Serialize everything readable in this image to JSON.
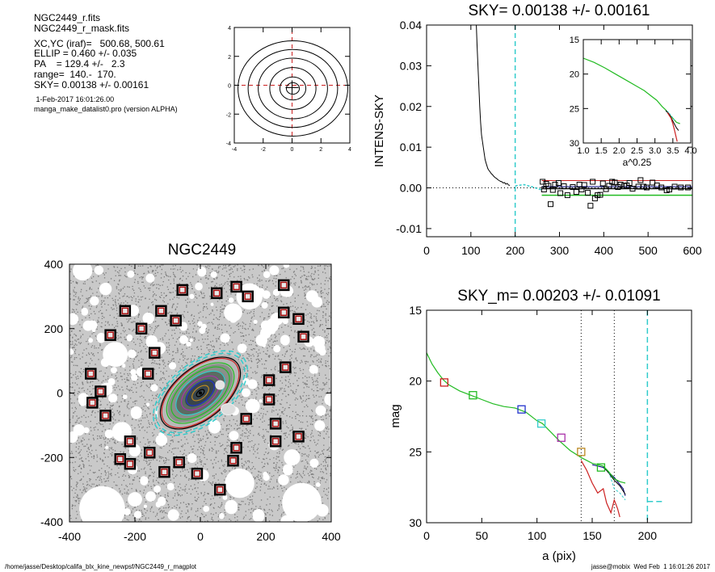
{
  "header": {
    "file_lines": [
      "NGC2449_r.fits",
      "NGC2449_r_mask.fits"
    ],
    "param_lines": [
      "XC,YC (iraf)=   500.68, 500.61",
      "ELLIP = 0.460 +/- 0.035",
      "PA    = 129.4 +/-   2.3",
      "range=  140.-  170.",
      "SKY= 0.00138 +/- 0.00161"
    ],
    "date": " 1-Feb-2017 16:01:26.00",
    "program": "manga_make_datalist0.pro (version ALPHA)"
  },
  "footer": {
    "left": "/home/jasse/Desktop/califa_blx_kine_newpsf/NGC2449_r_magplot",
    "right": "jasse@mobix  Wed Feb  1 16:01:26 2017"
  },
  "colors": {
    "red_line": "#cc2020",
    "green_line": "#22bb22",
    "cyan_line": "#33cccc",
    "navy_line": "#000080",
    "mask_grey": "#9a9a9a",
    "box_red": "#aa1111"
  },
  "chart_data": [
    {
      "id": "contour",
      "type": "contour",
      "title": "",
      "xlim": [
        -4,
        4
      ],
      "ylim": [
        -4,
        4
      ],
      "xticks": [
        -4,
        -2,
        0,
        2,
        4
      ],
      "yticks": [
        -4,
        -2,
        0,
        2,
        4
      ],
      "contours": [
        {
          "a": 0.45,
          "b": 0.4
        },
        {
          "a": 0.9,
          "b": 0.8
        },
        {
          "a": 1.6,
          "b": 1.45
        },
        {
          "a": 2.4,
          "b": 2.1
        },
        {
          "a": 3.1,
          "b": 2.7
        },
        {
          "a": 3.8,
          "b": 3.3
        }
      ]
    },
    {
      "id": "sky",
      "type": "line",
      "title": "SKY= 0.00138 +/- 0.00161",
      "xlabel": "",
      "ylabel": "INTENS-SKY",
      "xlim": [
        0,
        600
      ],
      "ylim": [
        -0.012,
        0.04
      ],
      "xticks": [
        0,
        100,
        200,
        300,
        400,
        500,
        600
      ],
      "yticks": [
        0.04,
        0.03,
        0.02,
        0.01,
        0.0,
        -0.01
      ],
      "ytick_labels": [
        "0.04",
        "0.03",
        "0.02",
        "0.01",
        "0.00",
        "-0.01"
      ],
      "profile": [
        [
          112,
          0.041
        ],
        [
          114,
          0.035
        ],
        [
          116,
          0.03
        ],
        [
          118,
          0.025
        ],
        [
          120,
          0.02
        ],
        [
          122,
          0.016
        ],
        [
          124,
          0.013
        ],
        [
          126,
          0.0115
        ],
        [
          128,
          0.01
        ],
        [
          130,
          0.0085
        ],
        [
          132,
          0.007
        ],
        [
          134,
          0.0062
        ],
        [
          136,
          0.0055
        ],
        [
          138,
          0.0048
        ],
        [
          140,
          0.0044
        ],
        [
          143,
          0.004
        ],
        [
          146,
          0.0035
        ],
        [
          149,
          0.0032
        ],
        [
          152,
          0.0028
        ],
        [
          155,
          0.0025
        ],
        [
          158,
          0.0023
        ],
        [
          161,
          0.002
        ],
        [
          164,
          0.0018
        ],
        [
          167,
          0.0016
        ],
        [
          170,
          0.0015
        ],
        [
          173,
          0.0012
        ],
        [
          176,
          0.0013
        ],
        [
          179,
          0.0009
        ],
        [
          182,
          0.0011
        ],
        [
          185,
          0.0007
        ],
        [
          188,
          0.0006
        ]
      ],
      "points": [
        [
          262,
          0.0015
        ],
        [
          265,
          -0.0004
        ],
        [
          270,
          0.001
        ],
        [
          275,
          0.0005
        ],
        [
          280,
          -0.004
        ],
        [
          285,
          -0.0005
        ],
        [
          290,
          0.0008
        ],
        [
          298,
          0.0012
        ],
        [
          302,
          -0.0013
        ],
        [
          310,
          0.0004
        ],
        [
          318,
          -0.0018
        ],
        [
          330,
          0.0002
        ],
        [
          338,
          -0.001
        ],
        [
          345,
          0.0008
        ],
        [
          350,
          -0.0004
        ],
        [
          356,
          0.0007
        ],
        [
          364,
          -0.0012
        ],
        [
          370,
          -0.0044
        ],
        [
          375,
          0.0015
        ],
        [
          380,
          -0.0026
        ],
        [
          386,
          -0.0018
        ],
        [
          392,
          -0.0017
        ],
        [
          398,
          0.0011
        ],
        [
          405,
          -0.0003
        ],
        [
          412,
          0.0005
        ],
        [
          419,
          0.0015
        ],
        [
          425,
          0.0013
        ],
        [
          432,
          0.0002
        ],
        [
          438,
          0.0008
        ],
        [
          446,
          0.0005
        ],
        [
          452,
          0.0006
        ],
        [
          458,
          0.0012
        ],
        [
          465,
          -0.0002
        ],
        [
          478,
          0.0003
        ],
        [
          483,
          0.0019
        ],
        [
          490,
          0.0003
        ],
        [
          497,
          0.0001
        ],
        [
          510,
          0.0013
        ],
        [
          520,
          0.0006
        ],
        [
          530,
          0.0001
        ],
        [
          542,
          -0.0006
        ],
        [
          548,
          -0.0004
        ],
        [
          560,
          0.0003
        ],
        [
          574,
          0.0001
        ],
        [
          590,
          0.0001
        ]
      ],
      "sky_line": 0.00138,
      "sky_upper": 0.0018,
      "sky_lower": -0.0018,
      "fit_start": 260,
      "dashed_x": 200,
      "inset": {
        "xlabel": "a^0.25",
        "xlim": [
          1.0,
          4.0
        ],
        "ylim": [
          15,
          30
        ],
        "xtick_labels": [
          "1.0",
          "1.5",
          "2.0",
          "2.5",
          "3.0",
          "3.5",
          "4.0"
        ],
        "yticks": [
          15,
          20,
          25,
          30
        ],
        "green": [
          [
            1.0,
            17.7
          ],
          [
            1.3,
            18.3
          ],
          [
            1.6,
            19.1
          ],
          [
            1.9,
            20.0
          ],
          [
            2.2,
            20.9
          ],
          [
            2.5,
            21.8
          ],
          [
            2.7,
            22.4
          ],
          [
            2.9,
            23.2
          ],
          [
            3.05,
            23.8
          ],
          [
            3.2,
            24.7
          ],
          [
            3.3,
            25.2
          ],
          [
            3.4,
            25.9
          ],
          [
            3.5,
            26.4
          ],
          [
            3.6,
            27.0
          ],
          [
            3.7,
            27.2
          ]
        ],
        "black": [
          [
            3.3,
            25.3
          ],
          [
            3.4,
            25.8
          ],
          [
            3.5,
            26.8
          ],
          [
            3.55,
            27.3
          ],
          [
            3.6,
            27.8
          ],
          [
            3.66,
            28.2
          ]
        ],
        "red": [
          [
            3.35,
            25.6
          ],
          [
            3.45,
            26.4
          ],
          [
            3.5,
            27.2
          ],
          [
            3.55,
            28.2
          ],
          [
            3.58,
            28.9
          ],
          [
            3.62,
            29.8
          ]
        ],
        "cyan": [
          [
            3.35,
            25.4
          ],
          [
            3.45,
            26.0
          ],
          [
            3.55,
            26.7
          ]
        ]
      }
    },
    {
      "id": "image",
      "type": "image",
      "title": "NGC2449",
      "xlim": [
        -400,
        400
      ],
      "ylim": [
        -400,
        400
      ],
      "xticks": [
        -400,
        -200,
        0,
        200,
        400
      ],
      "yticks": [
        400,
        200,
        0,
        -200,
        -400
      ],
      "squares": [
        [
          -330,
          -30
        ],
        [
          -305,
          5
        ],
        [
          -335,
          60
        ],
        [
          -290,
          -70
        ],
        [
          -275,
          180
        ],
        [
          -230,
          255
        ],
        [
          -215,
          -150
        ],
        [
          -245,
          -205
        ],
        [
          -215,
          -220
        ],
        [
          -180,
          200
        ],
        [
          -155,
          -185
        ],
        [
          -140,
          125
        ],
        [
          -160,
          60
        ],
        [
          -120,
          255
        ],
        [
          -75,
          225
        ],
        [
          -110,
          -245
        ],
        [
          -65,
          -215
        ],
        [
          -55,
          320
        ],
        [
          -10,
          -250
        ],
        [
          50,
          310
        ],
        [
          60,
          -300
        ],
        [
          100,
          -210
        ],
        [
          110,
          330
        ],
        [
          110,
          -170
        ],
        [
          140,
          -80
        ],
        [
          145,
          300
        ],
        [
          210,
          40
        ],
        [
          210,
          -20
        ],
        [
          230,
          -150
        ],
        [
          230,
          -95
        ],
        [
          255,
          335
        ],
        [
          255,
          250
        ],
        [
          260,
          80
        ],
        [
          300,
          -135
        ],
        [
          300,
          230
        ],
        [
          315,
          175
        ]
      ],
      "ellipses": [
        {
          "a": 170,
          "b": 92,
          "color": "cyan",
          "dashed": true
        },
        {
          "a": 160,
          "b": 86,
          "color": "cyan",
          "dashed": true
        },
        {
          "a": 145,
          "b": 78,
          "color": "black",
          "dashed": false
        },
        {
          "a": 140,
          "b": 75,
          "color": "red",
          "dashed": false
        },
        {
          "a": 122,
          "b": 66,
          "color": "green",
          "dashed": false
        },
        {
          "a": 105,
          "b": 57,
          "color": "green",
          "dashed": false
        },
        {
          "a": 88,
          "b": 48,
          "color": "cyan",
          "dashed": false
        },
        {
          "a": 68,
          "b": 38,
          "color": "purple",
          "dashed": false
        },
        {
          "a": 50,
          "b": 28,
          "color": "blue",
          "dashed": false
        },
        {
          "a": 30,
          "b": 17,
          "color": "olive",
          "dashed": false
        },
        {
          "a": 14,
          "b": 8,
          "color": "black",
          "dashed": false
        }
      ],
      "pa_deg": 129.4
    },
    {
      "id": "mag",
      "type": "line",
      "title": "SKY_m=  0.00203 +/- 0.01091",
      "xlabel": "a (pix)",
      "ylabel": "mag",
      "xlim": [
        0,
        240
      ],
      "ylim": [
        15,
        30
      ],
      "xticks": [
        0,
        50,
        100,
        150,
        200
      ],
      "yticks": [
        15,
        20,
        25,
        30
      ],
      "green": [
        [
          0,
          18.0
        ],
        [
          5,
          18.8
        ],
        [
          10,
          19.4
        ],
        [
          15,
          19.9
        ],
        [
          20,
          20.25
        ],
        [
          30,
          20.7
        ],
        [
          40,
          21.0
        ],
        [
          50,
          21.3
        ],
        [
          60,
          21.6
        ],
        [
          70,
          21.8
        ],
        [
          80,
          21.9
        ],
        [
          90,
          22.2
        ],
        [
          100,
          22.8
        ],
        [
          105,
          23.0
        ],
        [
          110,
          23.4
        ],
        [
          115,
          23.8
        ],
        [
          120,
          24.2
        ],
        [
          130,
          24.9
        ],
        [
          140,
          25.4
        ],
        [
          150,
          25.8
        ],
        [
          155,
          25.9
        ],
        [
          160,
          26.0
        ],
        [
          165,
          26.4
        ],
        [
          170,
          26.9
        ],
        [
          175,
          27.1
        ],
        [
          180,
          27.2
        ]
      ],
      "red": [
        [
          140,
          25.6
        ],
        [
          145,
          26.3
        ],
        [
          150,
          27.2
        ],
        [
          155,
          27.9
        ],
        [
          160,
          27.6
        ],
        [
          163,
          28.6
        ],
        [
          167,
          29.3
        ],
        [
          170,
          28.4
        ],
        [
          173,
          29.0
        ],
        [
          175,
          29.6
        ]
      ],
      "black": [
        [
          160,
          26.0
        ],
        [
          165,
          26.5
        ],
        [
          170,
          27.0
        ],
        [
          175,
          27.4
        ],
        [
          180,
          28.0
        ]
      ],
      "navy": [
        [
          150,
          25.9
        ],
        [
          160,
          26.1
        ],
        [
          170,
          26.8
        ],
        [
          178,
          27.6
        ],
        [
          180,
          28.1
        ]
      ],
      "cyan": [
        [
          165,
          26.4
        ],
        [
          170,
          27.6
        ],
        [
          175,
          27.9
        ],
        [
          180,
          28.4
        ]
      ],
      "cyan_tail": [
        [
          200,
          28.5
        ],
        [
          215,
          28.5
        ]
      ],
      "squares": [
        {
          "x": 16,
          "y": 20.1,
          "color": "red"
        },
        {
          "x": 42,
          "y": 21.0,
          "color": "green"
        },
        {
          "x": 86,
          "y": 22.0,
          "color": "blue"
        },
        {
          "x": 104,
          "y": 23.0,
          "color": "cyan"
        },
        {
          "x": 122,
          "y": 24.0,
          "color": "purple"
        },
        {
          "x": 140,
          "y": 25.0,
          "color": "olive"
        },
        {
          "x": 158,
          "y": 26.1,
          "color": "green"
        }
      ],
      "vlines": [
        140,
        170
      ],
      "dashed_x": 200
    }
  ]
}
